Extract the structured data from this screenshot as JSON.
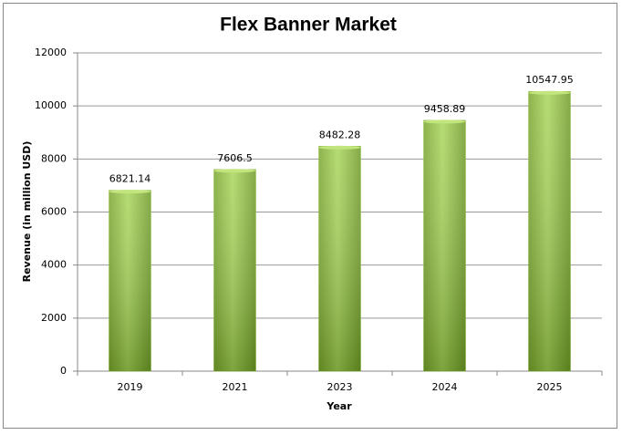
{
  "chart_data": {
    "type": "bar",
    "title": "Flex Banner Market",
    "x_label": "Year",
    "y_label": "Revenue (in million USD)",
    "categories": [
      "2019",
      "2021",
      "2023",
      "2024",
      "2025"
    ],
    "values": [
      6821.14,
      7606.5,
      8482.28,
      9458.89,
      10547.95
    ],
    "color": "#8cbf3a",
    "ylim": [
      0,
      12000
    ],
    "yticks": [
      0,
      2000,
      4000,
      6000,
      8000,
      10000,
      12000
    ],
    "grid": true
  }
}
